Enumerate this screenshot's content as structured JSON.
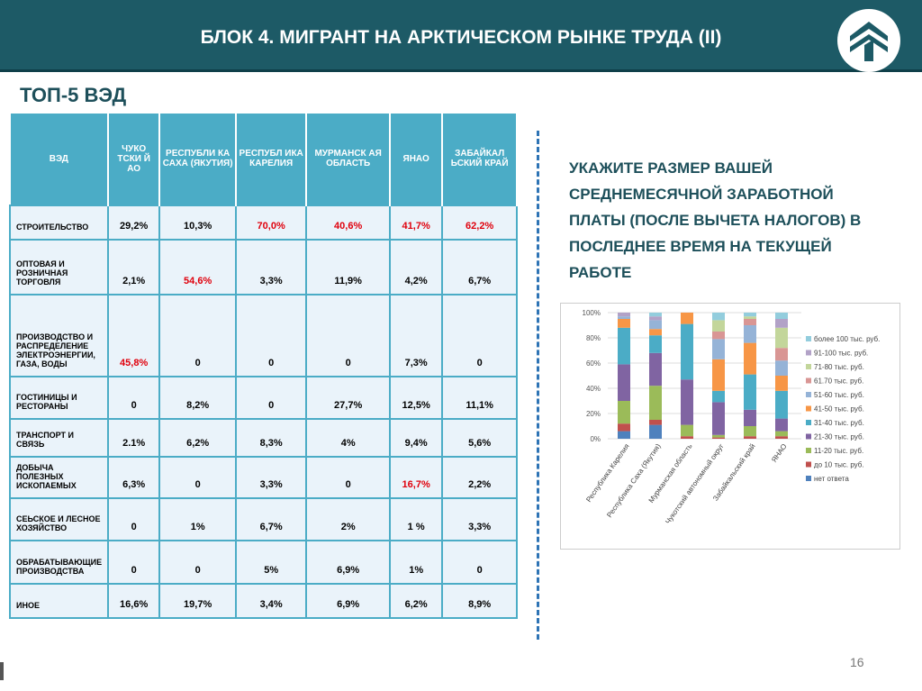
{
  "header": {
    "title": "БЛОК 4. МИГРАНТ НА АРКТИЧЕСКОМ РЫНКЕ ТРУДА (II)"
  },
  "subtitle": "ТОП-5 ВЭД",
  "table": {
    "headers": [
      "ВЭД",
      "ЧУКО ТСКИ Й АО",
      "РЕСПУБЛИ КА САХА (ЯКУТИЯ)",
      "РЕСПУБЛ ИКА КАРЕЛИЯ",
      "МУРМАНСК АЯ ОБЛАСТЬ",
      "ЯНАО",
      "ЗАБАЙКАЛ ЬСКИЙ КРАЙ"
    ],
    "rows": [
      {
        "label": "СТРОИТЕЛЬСТВО",
        "values": [
          "29,2%",
          "10,3%",
          "70,0%",
          "40,6%",
          "41,7%",
          "62,2%"
        ],
        "red": [
          2,
          3,
          4,
          5
        ]
      },
      {
        "label": "ОПТОВАЯ И РОЗНИЧНАЯ ТОРГОВЛЯ",
        "values": [
          "2,1%",
          "54,6%",
          "3,3%",
          "11,9%",
          "4,2%",
          "6,7%"
        ],
        "red": [
          1
        ]
      },
      {
        "label": "ПРОИЗВОДСТВО И РАСПРЕДЕЛЕНИЕ ЭЛЕКТРОЭНЕРГИИ, ГАЗА, ВОДЫ",
        "values": [
          "45,8%",
          "0",
          "0",
          "0",
          "7,3%",
          "0"
        ],
        "red": [
          0
        ]
      },
      {
        "label": "ГОСТИНИЦЫ И РЕСТОРАНЫ",
        "values": [
          "0",
          "8,2%",
          "0",
          "27,7%",
          "12,5%",
          "11,1%"
        ],
        "red": []
      },
      {
        "label": "ТРАНСПОРТ И СВЯЗЬ",
        "values": [
          "2.1%",
          "6,2%",
          "8,3%",
          "4%",
          "9,4%",
          "5,6%"
        ],
        "red": []
      },
      {
        "label": "ДОБЫЧА ПОЛЕЗНЫХ ИСКОПАЕМЫХ",
        "values": [
          "6,3%",
          "0",
          "3,3%",
          "0",
          "16,7%",
          "2,2%"
        ],
        "red": [
          4
        ]
      },
      {
        "label": "СЕЬСКОЕ И ЛЕСНОЕ ХОЗЯЙСТВО",
        "values": [
          "0",
          "1%",
          "6,7%",
          "2%",
          "1 %",
          "3,3%"
        ],
        "red": []
      },
      {
        "label": "ОБРАБАТЫВАЮЩИЕ ПРОИЗВОДСТВА",
        "values": [
          "0",
          "0",
          "5%",
          "6,9%",
          "1%",
          "0"
        ],
        "red": []
      },
      {
        "label": "ИНОЕ",
        "values": [
          "16,6%",
          "19,7%",
          "3,4%",
          "6,9%",
          "6,2%",
          "8,9%"
        ],
        "red": []
      }
    ]
  },
  "question": "УКАЖИТЕ РАЗМЕР ВАШЕЙ СРЕДНЕМЕСЯЧНОЙ ЗАРАБОТНОЙ ПЛАТЫ (ПОСЛЕ ВЫЧЕТА НАЛОГОВ) В ПОСЛЕДНЕЕ ВРЕМЯ НА ТЕКУЩЕЙ РАБОТЕ",
  "page_number": "16",
  "chart_data": {
    "type": "bar",
    "stacked": true,
    "categories": [
      "Республика Карелия",
      "Республика Саха (Якутия)",
      "Мурманская область",
      "Чукотский автономный округ",
      "Забайкальский край",
      "ЯНАО"
    ],
    "yticks": [
      "0%",
      "20%",
      "40%",
      "60%",
      "80%",
      "100%"
    ],
    "ylim": [
      0,
      100
    ],
    "legend_position": "right",
    "series": [
      {
        "name": "нет ответа",
        "color": "#4f81bd",
        "values": [
          6,
          11,
          0,
          0,
          0,
          0
        ]
      },
      {
        "name": "до 10 тыс. руб.",
        "color": "#c0504d",
        "values": [
          6,
          4,
          2,
          1,
          2,
          2
        ]
      },
      {
        "name": "11-20 тыс. руб.",
        "color": "#9bbb59",
        "values": [
          18,
          27,
          9,
          2,
          8,
          4
        ]
      },
      {
        "name": "21-30 тыс. руб.",
        "color": "#8064a2",
        "values": [
          29,
          26,
          36,
          26,
          13,
          10
        ]
      },
      {
        "name": "31-40 тыс. руб.",
        "color": "#4bacc6",
        "values": [
          29,
          14,
          44,
          9,
          28,
          22
        ]
      },
      {
        "name": "41-50 тыс. руб.",
        "color": "#f79646",
        "values": [
          7,
          5,
          9,
          25,
          25,
          12
        ]
      },
      {
        "name": "51-60 тыс. руб.",
        "color": "#95b3d7",
        "values": [
          2,
          7,
          0,
          16,
          14,
          12
        ]
      },
      {
        "name": "61.70 тыс. руб.",
        "color": "#d99694",
        "values": [
          0,
          0,
          0,
          6,
          5,
          10
        ]
      },
      {
        "name": "71-80 тыс. руб.",
        "color": "#c3d69b",
        "values": [
          0,
          0,
          0,
          9,
          2,
          16
        ]
      },
      {
        "name": "91-100 тыс. руб.",
        "color": "#b2a2c7",
        "values": [
          3,
          3,
          0,
          0,
          0,
          7
        ]
      },
      {
        "name": "более 100 тыс. руб.",
        "color": "#93cddd",
        "values": [
          0,
          3,
          0,
          6,
          3,
          5
        ]
      }
    ]
  }
}
